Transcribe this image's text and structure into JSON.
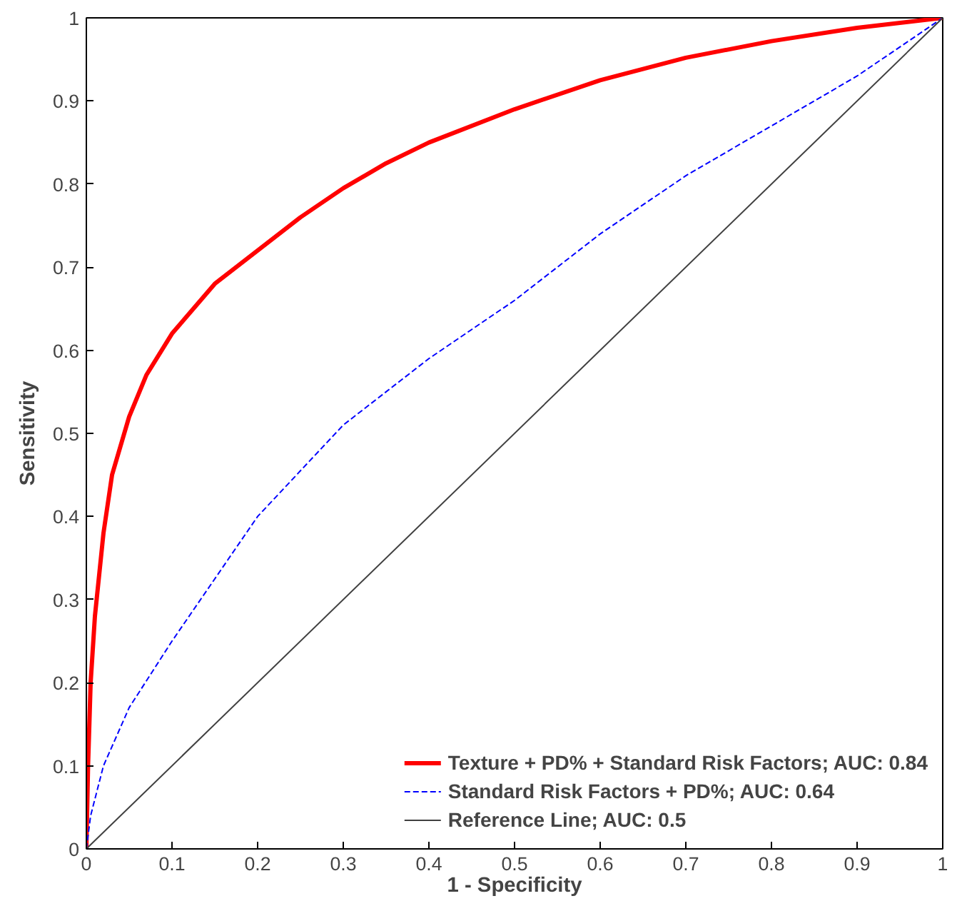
{
  "chart_data": {
    "type": "line",
    "xlabel": "1 - Specificity",
    "ylabel": "Sensitivity",
    "xlim": [
      0,
      1
    ],
    "ylim": [
      0,
      1
    ],
    "xticks": [
      0,
      0.1,
      0.2,
      0.3,
      0.4,
      0.5,
      0.6,
      0.7,
      0.8,
      0.9,
      1
    ],
    "yticks": [
      0,
      0.1,
      0.2,
      0.3,
      0.4,
      0.5,
      0.6,
      0.7,
      0.8,
      0.9,
      1
    ],
    "grid": false,
    "legend": "bottom right",
    "marker": "none",
    "series": [
      {
        "name": "Texture + PD% + Standard Risk Factors; AUC: 0.84",
        "color": "#ff0000",
        "line_style": "solid",
        "x": [
          0,
          0.002,
          0.005,
          0.01,
          0.02,
          0.03,
          0.05,
          0.07,
          0.1,
          0.15,
          0.2,
          0.25,
          0.3,
          0.35,
          0.4,
          0.5,
          0.6,
          0.7,
          0.8,
          0.9,
          1
        ],
        "values": [
          0,
          0.1,
          0.2,
          0.28,
          0.38,
          0.45,
          0.52,
          0.57,
          0.62,
          0.68,
          0.72,
          0.76,
          0.795,
          0.825,
          0.85,
          0.89,
          0.925,
          0.952,
          0.972,
          0.988,
          1
        ]
      },
      {
        "name": "Standard Risk Factors + PD%; AUC: 0.64",
        "color": "#0000ff",
        "line_style": "dashed",
        "x": [
          0,
          0.005,
          0.02,
          0.05,
          0.1,
          0.2,
          0.3,
          0.4,
          0.5,
          0.6,
          0.7,
          0.8,
          0.9,
          1
        ],
        "values": [
          0,
          0.04,
          0.1,
          0.17,
          0.25,
          0.4,
          0.51,
          0.59,
          0.66,
          0.74,
          0.81,
          0.87,
          0.93,
          1
        ]
      },
      {
        "name": "Reference Line; AUC: 0.5",
        "color": "#404040",
        "line_style": "solid",
        "x": [
          0,
          1
        ],
        "values": [
          0,
          1
        ]
      }
    ]
  }
}
